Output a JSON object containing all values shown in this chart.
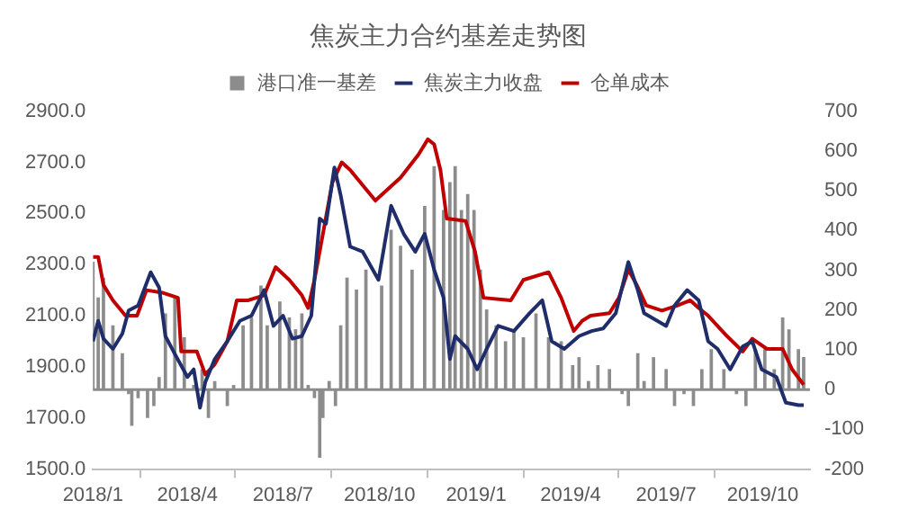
{
  "chart_data": {
    "type": "line",
    "title": "焦炭主力合约基差走势图",
    "legend": "top",
    "marker": "none",
    "xlim": [
      "2018-01-01",
      "2019-11-15"
    ],
    "xticks": [
      {
        "value": "2018-01-01",
        "label": "2018/1"
      },
      {
        "value": "2018-04-01",
        "label": "2018/4"
      },
      {
        "value": "2018-07-01",
        "label": "2018/7"
      },
      {
        "value": "2018-10-01",
        "label": "2018/10"
      },
      {
        "value": "2019-01-01",
        "label": "2019/1"
      },
      {
        "value": "2019-04-01",
        "label": "2019/4"
      },
      {
        "value": "2019-07-01",
        "label": "2019/7"
      },
      {
        "value": "2019-10-01",
        "label": "2019/10"
      }
    ],
    "ylim": [
      1500,
      2900
    ],
    "yticks": [
      {
        "value": 1500,
        "label": "1500.0"
      },
      {
        "value": 1700,
        "label": "1700.0"
      },
      {
        "value": 1900,
        "label": "1900.0"
      },
      {
        "value": 2100,
        "label": "2100.0"
      },
      {
        "value": 2300,
        "label": "2300.0"
      },
      {
        "value": 2500,
        "label": "2500.0"
      },
      {
        "value": 2700,
        "label": "2700.0"
      },
      {
        "value": 2900,
        "label": "2900.0"
      }
    ],
    "y2lim": [
      -200,
      700
    ],
    "y2ticks": [
      -200,
      -100,
      0,
      100,
      200,
      300,
      400,
      500,
      600,
      700
    ],
    "ref_lines": [
      {
        "axis": "y2",
        "value": 0,
        "color": "#8c8c8c"
      }
    ],
    "series": [
      {
        "name": "港口准一基差",
        "type": "bar",
        "axis": "y2",
        "color": "#8c8c8c",
        "x": [
          "2018-01-01",
          "2018-01-06",
          "2018-01-11",
          "2018-01-20",
          "2018-01-29",
          "2018-02-04",
          "2018-02-07",
          "2018-02-13",
          "2018-02-22",
          "2018-02-28",
          "2018-03-05",
          "2018-03-11",
          "2018-03-20",
          "2018-03-29",
          "2018-04-07",
          "2018-04-15",
          "2018-04-21",
          "2018-04-27",
          "2018-05-09",
          "2018-05-15",
          "2018-05-24",
          "2018-06-01",
          "2018-06-10",
          "2018-06-16",
          "2018-06-28",
          "2018-07-07",
          "2018-07-13",
          "2018-07-19",
          "2018-07-25",
          "2018-07-31",
          "2018-08-05",
          "2018-08-08",
          "2018-08-14",
          "2018-08-20",
          "2018-08-25",
          "2018-08-31",
          "2018-09-09",
          "2018-09-18",
          "2018-10-03",
          "2018-10-12",
          "2018-10-21",
          "2018-11-01",
          "2018-11-13",
          "2018-11-22",
          "2018-12-01",
          "2018-12-07",
          "2018-12-12",
          "2018-12-18",
          "2018-12-24",
          "2018-12-30",
          "2019-01-05",
          "2019-01-11",
          "2019-01-20",
          "2019-01-29",
          "2019-02-06",
          "2019-02-15",
          "2019-02-27",
          "2019-03-11",
          "2019-03-23",
          "2019-04-03",
          "2019-04-09",
          "2019-04-18",
          "2019-04-27",
          "2019-05-08",
          "2019-05-20",
          "2019-05-26",
          "2019-06-04",
          "2019-06-10",
          "2019-06-19",
          "2019-07-01",
          "2019-07-09",
          "2019-07-18",
          "2019-07-27",
          "2019-08-04",
          "2019-08-13",
          "2019-08-25",
          "2019-09-06",
          "2019-09-15",
          "2019-09-24",
          "2019-10-03",
          "2019-10-12",
          "2019-10-20",
          "2019-10-26",
          "2019-11-04",
          "2019-11-09"
        ],
        "values": [
          320,
          230,
          280,
          160,
          90,
          -10,
          -90,
          -20,
          -70,
          -40,
          30,
          190,
          230,
          130,
          10,
          50,
          -70,
          20,
          -40,
          10,
          160,
          180,
          260,
          160,
          220,
          180,
          150,
          190,
          10,
          -20,
          -170,
          -70,
          20,
          -40,
          160,
          280,
          250,
          300,
          260,
          400,
          360,
          300,
          460,
          560,
          450,
          520,
          560,
          450,
          490,
          450,
          300,
          200,
          160,
          120,
          150,
          130,
          190,
          130,
          120,
          60,
          80,
          20,
          60,
          50,
          -10,
          -40,
          90,
          20,
          80,
          50,
          -40,
          -10,
          -40,
          50,
          100,
          50,
          -10,
          -40,
          100,
          100,
          50,
          180,
          150,
          100,
          80
        ]
      },
      {
        "name": "焦炭主力收盘",
        "axis": "y",
        "color": "#1f2d6b",
        "x": [
          "2018-01-01",
          "2018-01-06",
          "2018-01-11",
          "2018-01-20",
          "2018-01-29",
          "2018-02-04",
          "2018-02-13",
          "2018-02-25",
          "2018-03-05",
          "2018-03-11",
          "2018-03-20",
          "2018-04-01",
          "2018-04-07",
          "2018-04-13",
          "2018-04-18",
          "2018-04-27",
          "2018-05-09",
          "2018-05-21",
          "2018-06-01",
          "2018-06-13",
          "2018-06-22",
          "2018-07-01",
          "2018-07-10",
          "2018-07-19",
          "2018-07-28",
          "2018-08-05",
          "2018-08-11",
          "2018-08-19",
          "2018-08-25",
          "2018-09-03",
          "2018-09-15",
          "2018-09-30",
          "2018-10-12",
          "2018-10-24",
          "2018-11-04",
          "2018-11-13",
          "2018-11-22",
          "2018-12-01",
          "2018-12-07",
          "2018-12-12",
          "2018-12-24",
          "2019-01-02",
          "2019-01-11",
          "2019-01-22",
          "2019-02-06",
          "2019-02-21",
          "2019-03-05",
          "2019-03-14",
          "2019-03-26",
          "2019-04-09",
          "2019-04-21",
          "2019-05-02",
          "2019-05-14",
          "2019-05-26",
          "2019-06-04",
          "2019-06-10",
          "2019-07-01",
          "2019-07-09",
          "2019-07-21",
          "2019-08-01",
          "2019-08-10",
          "2019-08-19",
          "2019-08-31",
          "2019-09-12",
          "2019-09-21",
          "2019-09-30",
          "2019-10-14",
          "2019-10-23",
          "2019-11-04",
          "2019-11-09"
        ],
        "values": [
          2000,
          2080,
          2010,
          1970,
          2030,
          2120,
          2140,
          2270,
          2210,
          2020,
          1950,
          1860,
          1890,
          1740,
          1840,
          1930,
          2000,
          2080,
          2100,
          2200,
          2060,
          2100,
          2010,
          2020,
          2100,
          2480,
          2460,
          2680,
          2570,
          2370,
          2350,
          2240,
          2530,
          2420,
          2350,
          2420,
          2280,
          2170,
          1930,
          2020,
          1970,
          1890,
          1970,
          2060,
          2040,
          2110,
          2160,
          2000,
          1970,
          2020,
          2040,
          2050,
          2110,
          2310,
          2200,
          2110,
          2060,
          2140,
          2200,
          2160,
          2000,
          1970,
          1890,
          1980,
          2000,
          1890,
          1860,
          1760,
          1750,
          1750
        ]
      },
      {
        "name": "仓单成本",
        "axis": "y",
        "color": "#c00000",
        "x": [
          "2018-01-01",
          "2018-01-06",
          "2018-01-11",
          "2018-01-20",
          "2018-02-01",
          "2018-02-12",
          "2018-02-21",
          "2018-03-08",
          "2018-03-23",
          "2018-03-26",
          "2018-04-10",
          "2018-04-18",
          "2018-04-27",
          "2018-05-09",
          "2018-05-18",
          "2018-05-29",
          "2018-06-13",
          "2018-06-24",
          "2018-07-07",
          "2018-07-19",
          "2018-07-25",
          "2018-07-31",
          "2018-08-17",
          "2018-08-26",
          "2018-09-03",
          "2018-09-27",
          "2018-10-21",
          "2018-11-07",
          "2018-11-16",
          "2018-11-22",
          "2018-11-28",
          "2018-12-04",
          "2018-12-22",
          "2018-12-31",
          "2019-01-08",
          "2019-02-03",
          "2019-02-15",
          "2019-03-11",
          "2019-03-23",
          "2019-04-04",
          "2019-04-12",
          "2019-04-20",
          "2019-05-08",
          "2019-05-17",
          "2019-05-26",
          "2019-06-03",
          "2019-06-12",
          "2019-06-27",
          "2019-07-12",
          "2019-07-24",
          "2019-08-01",
          "2019-08-10",
          "2019-08-28",
          "2019-09-12",
          "2019-09-21",
          "2019-10-05",
          "2019-10-20",
          "2019-10-29",
          "2019-11-09"
        ],
        "values": [
          2330,
          2330,
          2220,
          2160,
          2100,
          2100,
          2200,
          2190,
          2170,
          1960,
          1960,
          1870,
          1910,
          2000,
          2160,
          2160,
          2180,
          2290,
          2240,
          2180,
          2130,
          2240,
          2620,
          2700,
          2670,
          2550,
          2640,
          2730,
          2790,
          2770,
          2670,
          2480,
          2470,
          2350,
          2170,
          2160,
          2240,
          2270,
          2170,
          2040,
          2080,
          2100,
          2110,
          2170,
          2280,
          2220,
          2140,
          2120,
          2140,
          2160,
          2130,
          2100,
          2020,
          1960,
          2010,
          1970,
          1970,
          1890,
          1830
        ]
      }
    ]
  }
}
